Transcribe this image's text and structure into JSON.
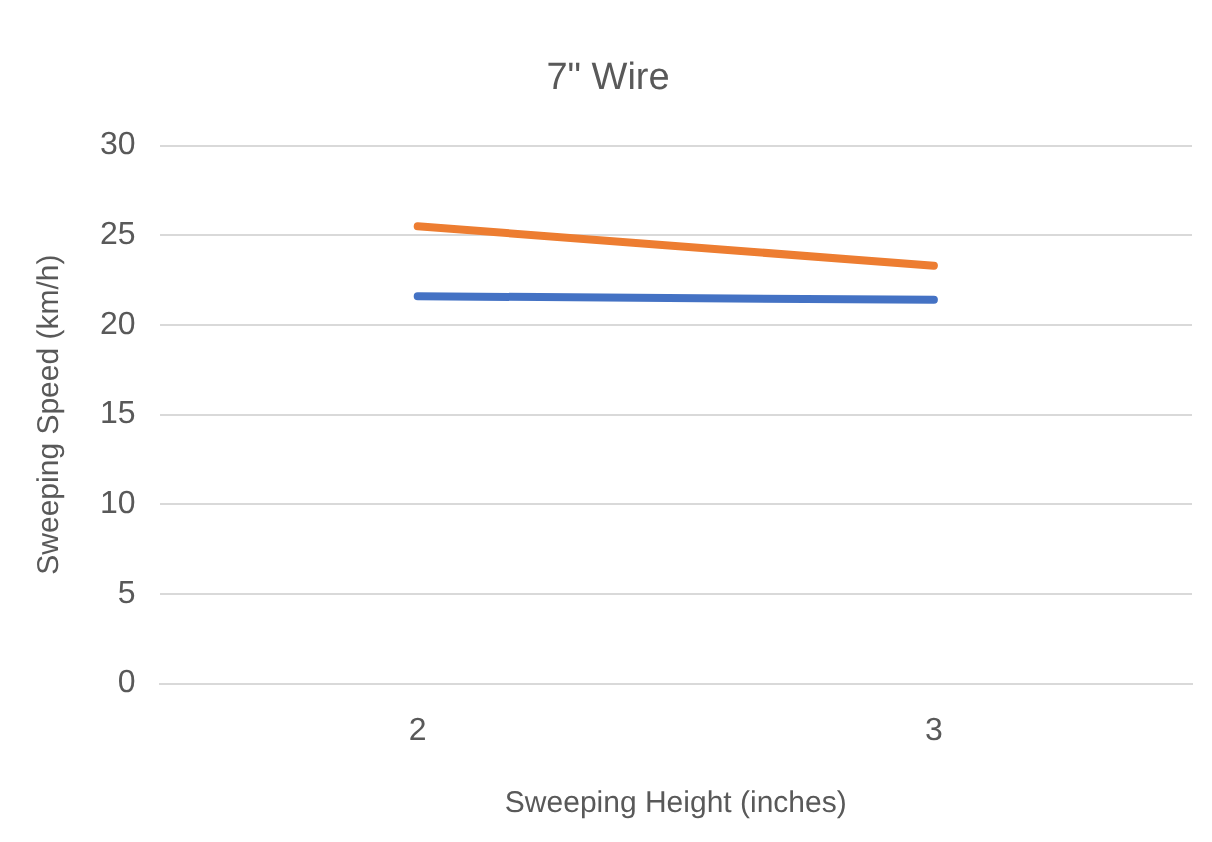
{
  "chart_data": {
    "type": "line",
    "title": "7\" Wire",
    "xlabel": "Sweeping Height (inches)",
    "ylabel": "Sweeping Speed (km/h)",
    "categories": [
      "2",
      "3"
    ],
    "series": [
      {
        "color": "#4472c4",
        "values": [
          21.6,
          21.4
        ]
      },
      {
        "color": "#ed7d31",
        "values": [
          25.5,
          23.3
        ]
      }
    ],
    "ylim": [
      0,
      30
    ],
    "yticks": [
      0,
      5,
      10,
      15,
      20,
      25,
      30
    ],
    "grid": "y",
    "legend": false,
    "marker": "none",
    "line_style": "solid"
  }
}
